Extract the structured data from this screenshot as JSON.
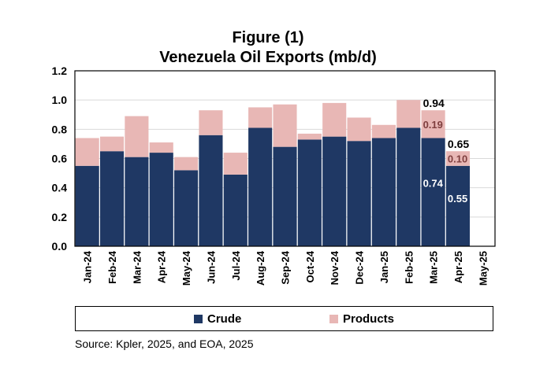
{
  "figure_label": "Figure (1)",
  "source": "Source: Kpler, 2025, and EOA, 2025",
  "colors": {
    "crude": "#1f3864",
    "products": "#e8b7b5"
  },
  "chart_data": {
    "type": "bar",
    "stacked": true,
    "title": "Venezuela Oil Exports (mb/d)",
    "xlabel": "",
    "ylabel": "",
    "ylim": [
      0,
      1.2
    ],
    "yticks": [
      "0.0",
      "0.2",
      "0.4",
      "0.6",
      "0.8",
      "1.0",
      "1.2"
    ],
    "categories": [
      "Jan-24",
      "Feb-24",
      "Mar-24",
      "Apr-24",
      "May-24",
      "Jun-24",
      "Jul-24",
      "Aug-24",
      "Sep-24",
      "Oct-24",
      "Nov-24",
      "Dec-24",
      "Jan-25",
      "Feb-25",
      "Mar-25",
      "Apr-25",
      "May-25"
    ],
    "series": [
      {
        "name": "Crude",
        "values": [
          0.55,
          0.65,
          0.61,
          0.64,
          0.52,
          0.76,
          0.49,
          0.81,
          0.68,
          0.73,
          0.75,
          0.72,
          0.74,
          0.81,
          0.74,
          0.55,
          null
        ]
      },
      {
        "name": "Products",
        "values": [
          0.19,
          0.1,
          0.28,
          0.07,
          0.09,
          0.17,
          0.15,
          0.14,
          0.29,
          0.04,
          0.23,
          0.16,
          0.09,
          0.19,
          0.19,
          0.1,
          null
        ]
      }
    ],
    "annotations": [
      {
        "category": "Mar-25",
        "total": "0.94",
        "products": "0.19",
        "crude": "0.74"
      },
      {
        "category": "Apr-25",
        "total": "0.65",
        "products": "0.10",
        "crude": "0.55"
      }
    ],
    "legend": {
      "position": "bottom",
      "entries": [
        "Crude",
        "Products"
      ]
    }
  }
}
